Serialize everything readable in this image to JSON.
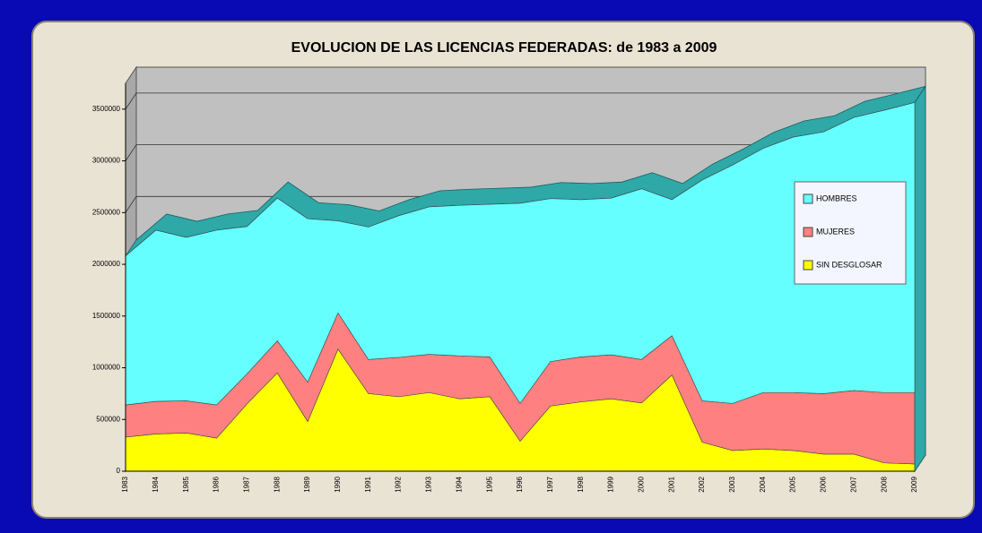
{
  "chart_data": {
    "type": "stacked_area",
    "title": "EVOLUCION DE LAS LICENCIAS FEDERADAS: de 1983 a 2009",
    "categories": [
      "1983",
      "1984",
      "1985",
      "1986",
      "1987",
      "1988",
      "1989",
      "1990",
      "1991",
      "1992",
      "1993",
      "1994",
      "1995",
      "1996",
      "1997",
      "1998",
      "1999",
      "2000",
      "2001",
      "2002",
      "2003",
      "2004",
      "2005",
      "2006",
      "2007",
      "2008",
      "2009"
    ],
    "series": [
      {
        "name": "SIN DESGLOSAR",
        "color": "#ffff00",
        "values": [
          330000,
          360000,
          370000,
          320000,
          650000,
          950000,
          480000,
          1180000,
          750000,
          720000,
          760000,
          700000,
          720000,
          290000,
          630000,
          670000,
          700000,
          660000,
          930000,
          280000,
          200000,
          215000,
          200000,
          165000,
          165000,
          80000,
          70000
        ]
      },
      {
        "name": "MUJERES",
        "color": "#ff8080",
        "values": [
          310000,
          315000,
          310000,
          320000,
          290000,
          310000,
          380000,
          350000,
          330000,
          380000,
          370000,
          415000,
          385000,
          365000,
          430000,
          435000,
          425000,
          420000,
          380000,
          400000,
          455000,
          545000,
          560000,
          585000,
          615000,
          680000,
          690000
        ]
      },
      {
        "name": "HOMBRES",
        "color": "#66ffff",
        "values": [
          1440000,
          1655000,
          1580000,
          1690000,
          1425000,
          1380000,
          1580000,
          890000,
          1280000,
          1370000,
          1425000,
          1455000,
          1475000,
          1935000,
          1575000,
          1520000,
          1515000,
          1650000,
          1315000,
          2135000,
          2305000,
          2360000,
          2470000,
          2530000,
          2640000,
          2730000,
          2805000
        ]
      }
    ],
    "ylim": [
      0,
      3750000
    ],
    "yticks": [
      0,
      500000,
      1000000,
      1500000,
      2000000,
      2500000,
      3000000,
      3500000
    ],
    "grid": true,
    "legend": "right"
  }
}
